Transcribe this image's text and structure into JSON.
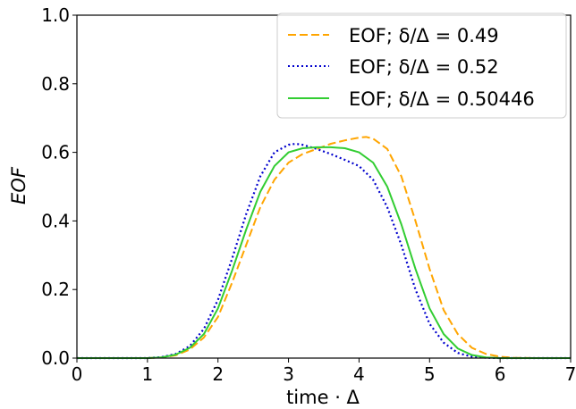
{
  "chart_data": {
    "type": "line",
    "title": "",
    "xlabel": "time · Δ",
    "ylabel": "EOF",
    "xlim": [
      0,
      7
    ],
    "ylim": [
      0.0,
      1.0
    ],
    "x_ticks": [
      "0",
      "1",
      "2",
      "3",
      "4",
      "5",
      "6",
      "7"
    ],
    "y_ticks": [
      "0.0",
      "0.2",
      "0.4",
      "0.6",
      "0.8",
      "1.0"
    ],
    "grid": false,
    "legend_position": "top-right",
    "series": [
      {
        "name": "EOF; δ/Δ = 0.49",
        "color": "#FFA500",
        "style": "dashed",
        "x": [
          0,
          1.0,
          1.2,
          1.4,
          1.6,
          1.8,
          2.0,
          2.2,
          2.4,
          2.6,
          2.8,
          3.0,
          3.2,
          3.4,
          3.6,
          3.8,
          4.0,
          4.1,
          4.2,
          4.4,
          4.6,
          4.8,
          5.0,
          5.2,
          5.4,
          5.6,
          5.8,
          6.0,
          6.2,
          6.5,
          7.0
        ],
        "y": [
          0.0,
          0.0,
          0.002,
          0.008,
          0.025,
          0.06,
          0.12,
          0.22,
          0.33,
          0.44,
          0.52,
          0.57,
          0.595,
          0.61,
          0.625,
          0.635,
          0.643,
          0.645,
          0.64,
          0.61,
          0.53,
          0.4,
          0.26,
          0.14,
          0.07,
          0.03,
          0.012,
          0.004,
          0.001,
          0.0,
          0.0
        ]
      },
      {
        "name": "EOF; δ/Δ = 0.52",
        "color": "#0000CD",
        "style": "dotted",
        "x": [
          0,
          1.0,
          1.2,
          1.4,
          1.6,
          1.8,
          2.0,
          2.2,
          2.4,
          2.6,
          2.8,
          3.0,
          3.1,
          3.2,
          3.4,
          3.6,
          3.8,
          4.0,
          4.2,
          4.4,
          4.6,
          4.8,
          5.0,
          5.2,
          5.4,
          5.6,
          5.8,
          6.0,
          6.5,
          7.0
        ],
        "y": [
          0.0,
          0.0,
          0.003,
          0.012,
          0.035,
          0.085,
          0.17,
          0.29,
          0.42,
          0.53,
          0.6,
          0.622,
          0.625,
          0.622,
          0.61,
          0.595,
          0.578,
          0.56,
          0.52,
          0.44,
          0.33,
          0.2,
          0.1,
          0.045,
          0.015,
          0.004,
          0.001,
          0.0,
          0.0,
          0.0
        ]
      },
      {
        "name": "EOF; δ/Δ = 0.50446",
        "color": "#32CD32",
        "style": "solid",
        "x": [
          0,
          1.0,
          1.2,
          1.4,
          1.6,
          1.8,
          2.0,
          2.2,
          2.4,
          2.6,
          2.8,
          3.0,
          3.2,
          3.4,
          3.6,
          3.8,
          4.0,
          4.2,
          4.4,
          4.6,
          4.8,
          5.0,
          5.2,
          5.4,
          5.6,
          5.8,
          6.0,
          6.2,
          6.5,
          7.0
        ],
        "y": [
          0.0,
          0.0,
          0.002,
          0.01,
          0.03,
          0.07,
          0.145,
          0.255,
          0.375,
          0.485,
          0.56,
          0.6,
          0.612,
          0.615,
          0.615,
          0.612,
          0.6,
          0.57,
          0.5,
          0.39,
          0.26,
          0.145,
          0.07,
          0.028,
          0.009,
          0.002,
          0.0,
          0.0,
          0.0,
          0.0
        ]
      }
    ]
  }
}
